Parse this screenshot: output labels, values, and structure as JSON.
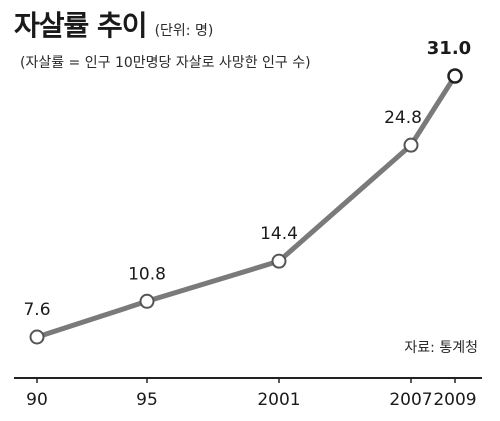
{
  "header": {
    "title": "자살률 추이",
    "unit_note": "(단위: 명)",
    "subtitle": "(자살률 = 인구 10만명당 자살로 사망한 인구 수)"
  },
  "source": "자료: 통계청",
  "chart_data": {
    "type": "line",
    "title": "자살률 추이",
    "categories": [
      "90",
      "95",
      "2001",
      "2007",
      "2009"
    ],
    "x": [
      1990,
      1995,
      2001,
      2007,
      2009
    ],
    "values": [
      7.6,
      10.8,
      14.4,
      24.8,
      31.0
    ],
    "value_labels": [
      "7.6",
      "10.8",
      "14.4",
      "24.8",
      "31.0"
    ],
    "highlight_last": true,
    "xlim": [
      1987,
      2011
    ],
    "ylim": [
      4,
      34
    ],
    "grid": false,
    "line_color": "#7a7a7a",
    "marker_fill": "#ffffff",
    "marker_stroke": "#555555",
    "highlight_stroke": "#222222",
    "axis_color": "#222222"
  }
}
